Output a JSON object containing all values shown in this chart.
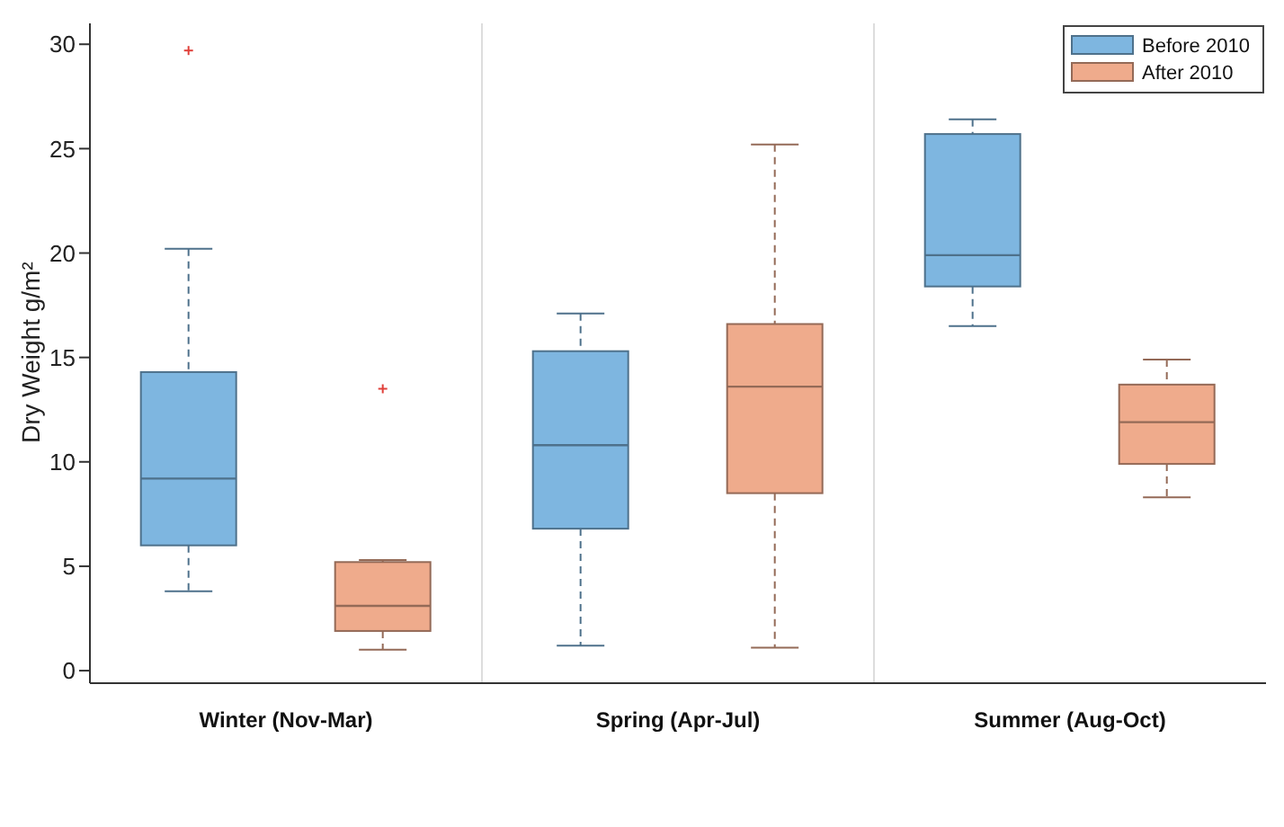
{
  "chart_data": {
    "type": "box",
    "ylabel": "Dry Weight g/m²",
    "categories": [
      "Winter (Nov-Mar)",
      "Spring (Apr-Jul)",
      "Summer (Aug-Oct)"
    ],
    "ylim": [
      -0.6,
      31
    ],
    "yticks": [
      0,
      5,
      10,
      15,
      20,
      25,
      30
    ],
    "grid": "x",
    "legend": "top right",
    "series": [
      {
        "name": "Before 2010",
        "color": "#7eb6e0",
        "boxes": [
          {
            "low": 3.8,
            "q1": 6.0,
            "median": 9.2,
            "q3": 14.3,
            "high": 20.2,
            "outliers": [
              29.7
            ]
          },
          {
            "low": 1.2,
            "q1": 6.8,
            "median": 10.8,
            "q3": 15.3,
            "high": 17.1
          },
          {
            "low": 16.5,
            "q1": 18.4,
            "median": 19.9,
            "q3": 25.7,
            "high": 26.4
          }
        ]
      },
      {
        "name": "After 2010",
        "color": "#efab8c",
        "boxes": [
          {
            "low": 1.0,
            "q1": 1.9,
            "median": 3.1,
            "q3": 5.2,
            "high": 5.3,
            "outliers": [
              13.5
            ]
          },
          {
            "low": 1.1,
            "q1": 8.5,
            "median": 13.6,
            "q3": 16.6,
            "high": 25.2
          },
          {
            "low": 8.3,
            "q1": 9.9,
            "median": 11.9,
            "q3": 13.7,
            "high": 14.9
          }
        ]
      }
    ]
  }
}
